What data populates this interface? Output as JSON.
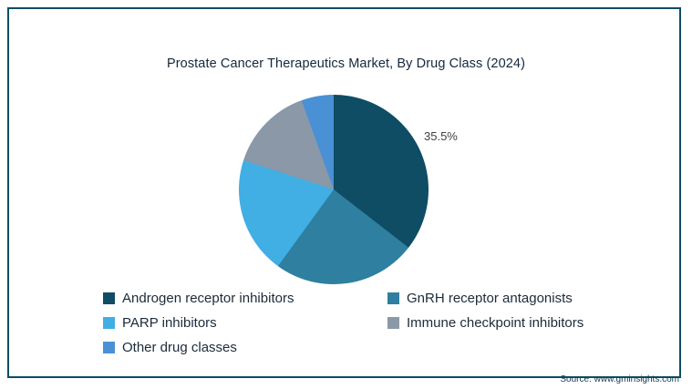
{
  "chart_data": {
    "type": "pie",
    "title": "Prostate Cancer Therapeutics Market, By Drug Class (2024)",
    "categories": [
      "Androgen receptor inhibitors",
      "GnRH receptor antagonists",
      "PARP inhibitors",
      "Immune checkpoint inhibitors",
      "Other drug classes"
    ],
    "values": [
      35.5,
      24.5,
      20,
      14.5,
      5.5
    ],
    "colors": [
      "#0e4d64",
      "#2e7fa0",
      "#41aee4",
      "#8a98a7",
      "#4a90d4"
    ],
    "start_angle_deg": 0,
    "direction": "clockwise",
    "data_label": {
      "index": 0,
      "text": "35.5%"
    },
    "legend_position": "bottom"
  },
  "footer": {
    "source": "Source: www.gminsights.com"
  }
}
